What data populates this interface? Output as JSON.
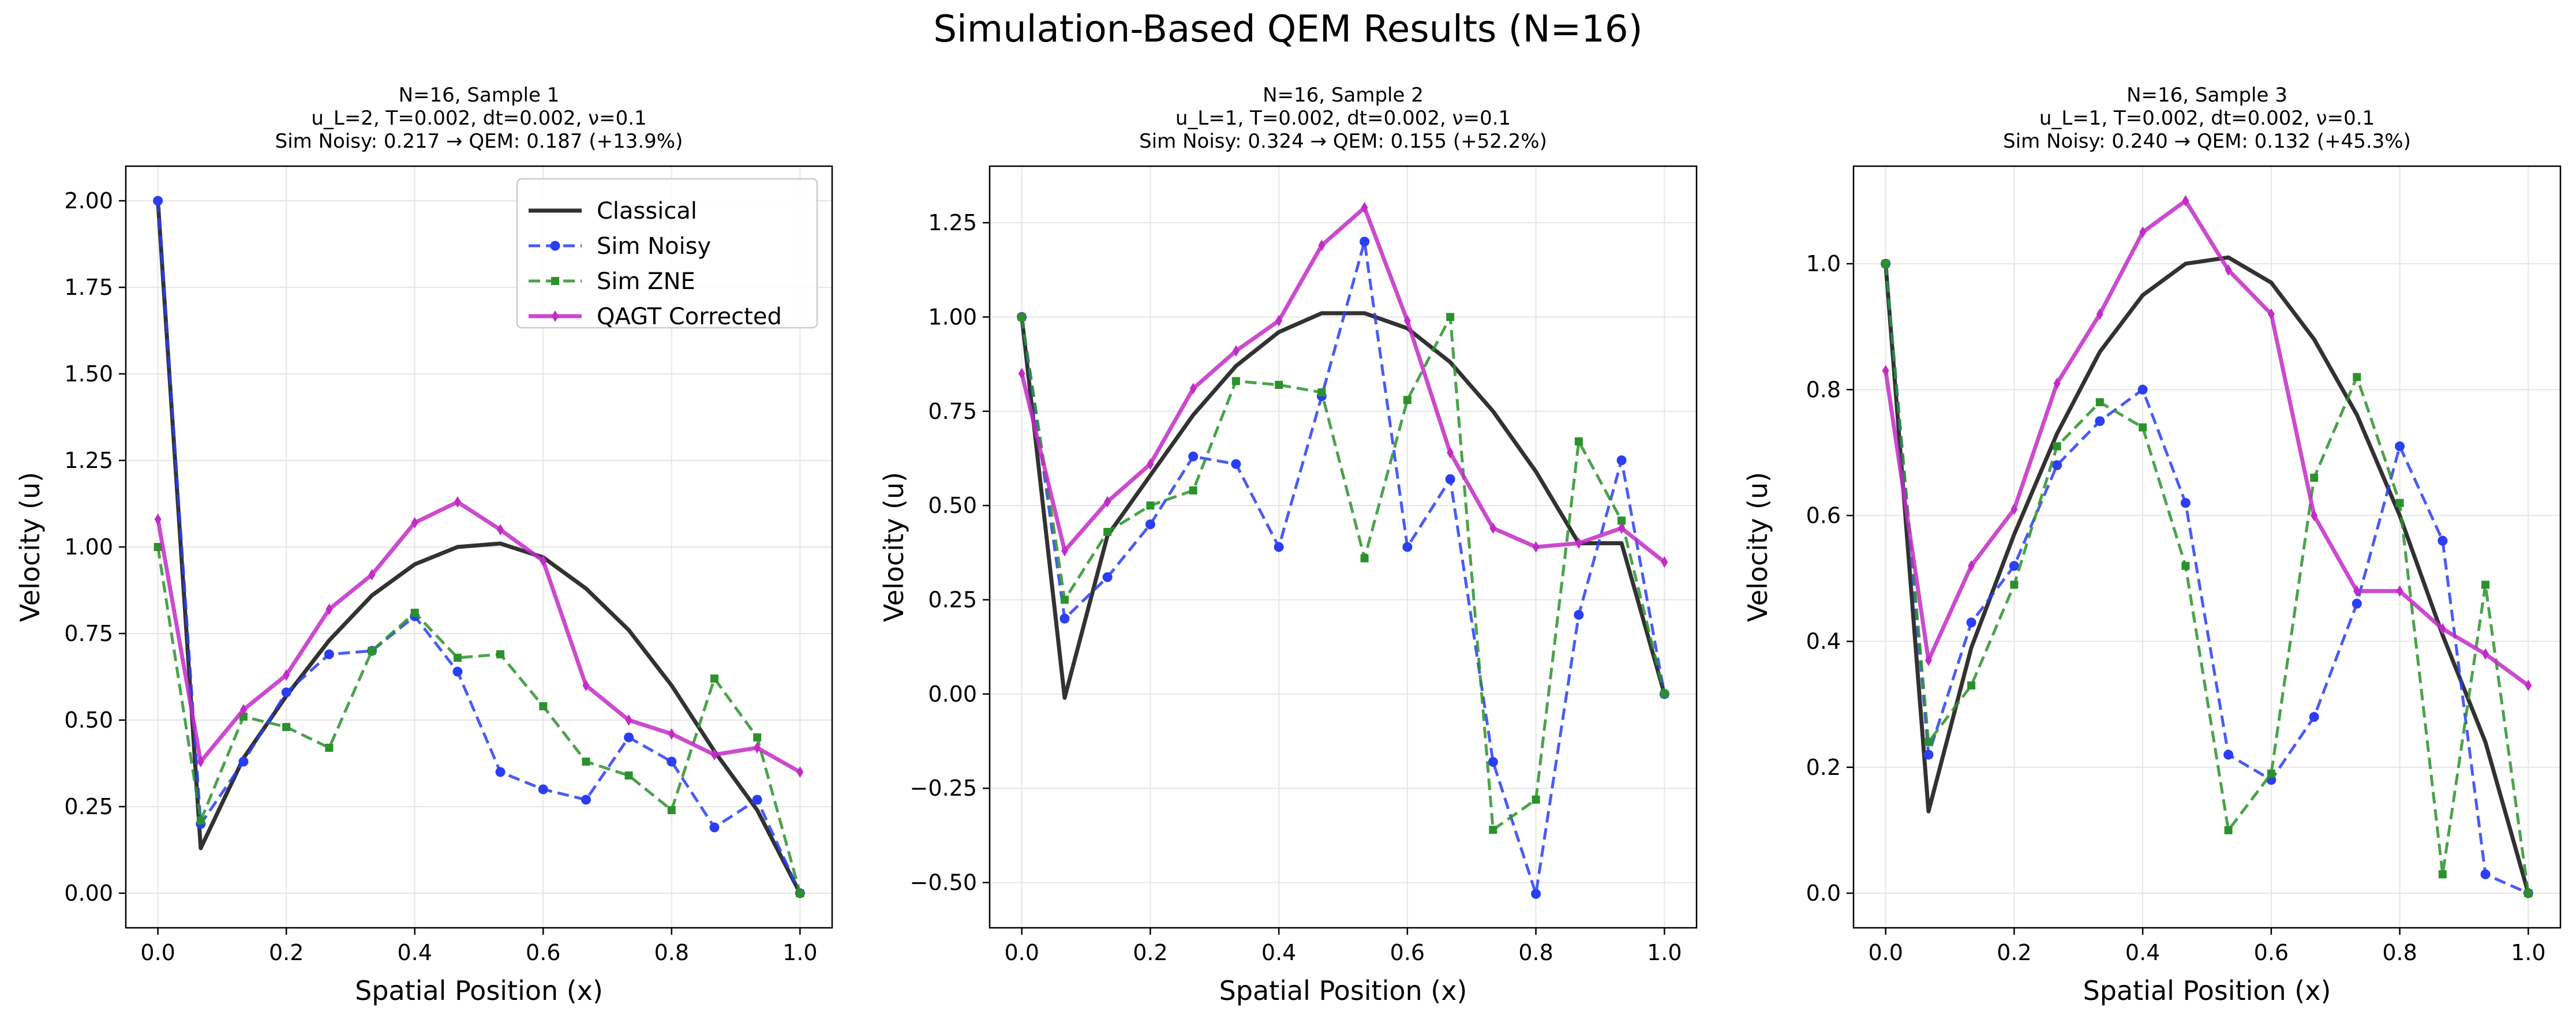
{
  "figure": {
    "suptitle": "Simulation-Based QEM Results (N=16)"
  },
  "colors": {
    "classical": "#2b2b2b",
    "sim_noisy": "#2a3ef5",
    "sim_zne": "#2b922b",
    "qagt": "#c22bc6",
    "grid": "#e6e6e6"
  },
  "chart_data": [
    {
      "type": "line",
      "title_lines": [
        "N=16, Sample 1",
        "u_L=2, T=0.002, dt=0.002, ν=0.1",
        "Sim Noisy: 0.217 → QEM: 0.187 (+13.9%)"
      ],
      "xlabel": "Spatial Position (x)",
      "ylabel": "Velocity (u)",
      "xlim": [
        -0.05,
        1.05
      ],
      "ylim": [
        -0.1,
        2.1
      ],
      "xticks": [
        0.0,
        0.2,
        0.4,
        0.6,
        0.8,
        1.0
      ],
      "xtick_labels": [
        "0.0",
        "0.2",
        "0.4",
        "0.6",
        "0.8",
        "1.0"
      ],
      "yticks": [
        0.0,
        0.25,
        0.5,
        0.75,
        1.0,
        1.25,
        1.5,
        1.75,
        2.0
      ],
      "ytick_labels": [
        "0.00",
        "0.25",
        "0.50",
        "0.75",
        "1.00",
        "1.25",
        "1.50",
        "1.75",
        "2.00"
      ],
      "grid": true,
      "legend": {
        "placement": "top-right",
        "entries": [
          "Classical",
          "Sim Noisy",
          "Sim ZNE",
          "QAGT Corrected"
        ]
      },
      "x": [
        0.0,
        0.0667,
        0.1333,
        0.2,
        0.2667,
        0.3333,
        0.4,
        0.4667,
        0.5333,
        0.6,
        0.6667,
        0.7333,
        0.8,
        0.8667,
        0.9333,
        1.0
      ],
      "series": [
        {
          "name": "Classical",
          "key": "classical",
          "values": [
            2.0,
            0.13,
            0.39,
            0.57,
            0.73,
            0.86,
            0.95,
            1.0,
            1.01,
            0.97,
            0.88,
            0.76,
            0.6,
            0.41,
            0.24,
            0.0
          ]
        },
        {
          "name": "Sim Noisy",
          "key": "sim_noisy",
          "values": [
            2.0,
            0.2,
            0.38,
            0.58,
            0.69,
            0.7,
            0.8,
            0.64,
            0.35,
            0.3,
            0.27,
            0.45,
            0.38,
            0.19,
            0.27,
            0.0
          ]
        },
        {
          "name": "Sim ZNE",
          "key": "sim_zne",
          "values": [
            1.0,
            0.21,
            0.51,
            0.48,
            0.42,
            0.7,
            0.81,
            0.68,
            0.69,
            0.54,
            0.38,
            0.34,
            0.24,
            0.62,
            0.45,
            0.0
          ]
        },
        {
          "name": "QAGT Corrected",
          "key": "qagt",
          "values": [
            1.08,
            0.38,
            0.53,
            0.63,
            0.82,
            0.92,
            1.07,
            1.13,
            1.05,
            0.96,
            0.6,
            0.5,
            0.46,
            0.4,
            0.42,
            0.35
          ]
        }
      ]
    },
    {
      "type": "line",
      "title_lines": [
        "N=16, Sample 2",
        "u_L=1, T=0.002, dt=0.002, ν=0.1",
        "Sim Noisy: 0.324 → QEM: 0.155 (+52.2%)"
      ],
      "xlabel": "Spatial Position (x)",
      "ylabel": "Velocity (u)",
      "xlim": [
        -0.05,
        1.05
      ],
      "ylim": [
        -0.62,
        1.4
      ],
      "xticks": [
        0.0,
        0.2,
        0.4,
        0.6,
        0.8,
        1.0
      ],
      "xtick_labels": [
        "0.0",
        "0.2",
        "0.4",
        "0.6",
        "0.8",
        "1.0"
      ],
      "yticks": [
        -0.5,
        -0.25,
        0.0,
        0.25,
        0.5,
        0.75,
        1.0,
        1.25
      ],
      "ytick_labels": [
        "−0.50",
        "−0.25",
        "0.00",
        "0.25",
        "0.50",
        "0.75",
        "1.00",
        "1.25"
      ],
      "grid": true,
      "x": [
        0.0,
        0.0667,
        0.1333,
        0.2,
        0.2667,
        0.3333,
        0.4,
        0.4667,
        0.5333,
        0.6,
        0.6667,
        0.7333,
        0.8,
        0.8667,
        0.9333,
        1.0
      ],
      "series": [
        {
          "name": "Classical",
          "key": "classical",
          "values": [
            1.0,
            -0.01,
            0.42,
            0.58,
            0.74,
            0.87,
            0.96,
            1.01,
            1.01,
            0.97,
            0.88,
            0.75,
            0.59,
            0.4,
            0.4,
            0.0
          ]
        },
        {
          "name": "Sim Noisy",
          "key": "sim_noisy",
          "values": [
            1.0,
            0.2,
            0.31,
            0.45,
            0.63,
            0.61,
            0.39,
            0.79,
            1.2,
            0.39,
            0.57,
            -0.18,
            -0.53,
            0.21,
            0.62,
            0.0
          ]
        },
        {
          "name": "Sim ZNE",
          "key": "sim_zne",
          "values": [
            1.0,
            0.25,
            0.43,
            0.5,
            0.54,
            0.83,
            0.82,
            0.8,
            0.36,
            0.78,
            1.0,
            -0.36,
            -0.28,
            0.67,
            0.46,
            0.0
          ]
        },
        {
          "name": "QAGT Corrected",
          "key": "qagt",
          "values": [
            0.85,
            0.38,
            0.51,
            0.61,
            0.81,
            0.91,
            0.99,
            1.19,
            1.29,
            0.99,
            0.64,
            0.44,
            0.39,
            0.4,
            0.44,
            0.35
          ]
        }
      ]
    },
    {
      "type": "line",
      "title_lines": [
        "N=16, Sample 3",
        "u_L=1, T=0.002, dt=0.002, ν=0.1",
        "Sim Noisy: 0.240 → QEM: 0.132 (+45.3%)"
      ],
      "xlabel": "Spatial Position (x)",
      "ylabel": "Velocity (u)",
      "xlim": [
        -0.05,
        1.05
      ],
      "ylim": [
        -0.055,
        1.155
      ],
      "xticks": [
        0.0,
        0.2,
        0.4,
        0.6,
        0.8,
        1.0
      ],
      "xtick_labels": [
        "0.0",
        "0.2",
        "0.4",
        "0.6",
        "0.8",
        "1.0"
      ],
      "yticks": [
        0.0,
        0.2,
        0.4,
        0.6,
        0.8,
        1.0
      ],
      "ytick_labels": [
        "0.0",
        "0.2",
        "0.4",
        "0.6",
        "0.8",
        "1.0"
      ],
      "grid": true,
      "x": [
        0.0,
        0.0667,
        0.1333,
        0.2,
        0.2667,
        0.3333,
        0.4,
        0.4667,
        0.5333,
        0.6,
        0.6667,
        0.7333,
        0.8,
        0.8667,
        0.9333,
        1.0
      ],
      "series": [
        {
          "name": "Classical",
          "key": "classical",
          "values": [
            1.0,
            0.13,
            0.39,
            0.57,
            0.73,
            0.86,
            0.95,
            1.0,
            1.01,
            0.97,
            0.88,
            0.76,
            0.6,
            0.41,
            0.24,
            0.0
          ]
        },
        {
          "name": "Sim Noisy",
          "key": "sim_noisy",
          "values": [
            1.0,
            0.22,
            0.43,
            0.52,
            0.68,
            0.75,
            0.8,
            0.62,
            0.22,
            0.18,
            0.28,
            0.46,
            0.71,
            0.56,
            0.03,
            0.0
          ]
        },
        {
          "name": "Sim ZNE",
          "key": "sim_zne",
          "values": [
            1.0,
            0.24,
            0.33,
            0.49,
            0.71,
            0.78,
            0.74,
            0.52,
            0.1,
            0.19,
            0.66,
            0.82,
            0.62,
            0.03,
            0.49,
            0.0
          ]
        },
        {
          "name": "QAGT Corrected",
          "key": "qagt",
          "values": [
            0.83,
            0.37,
            0.52,
            0.61,
            0.81,
            0.92,
            1.05,
            1.1,
            0.99,
            0.92,
            0.6,
            0.48,
            0.48,
            0.42,
            0.38,
            0.33
          ]
        }
      ]
    }
  ]
}
